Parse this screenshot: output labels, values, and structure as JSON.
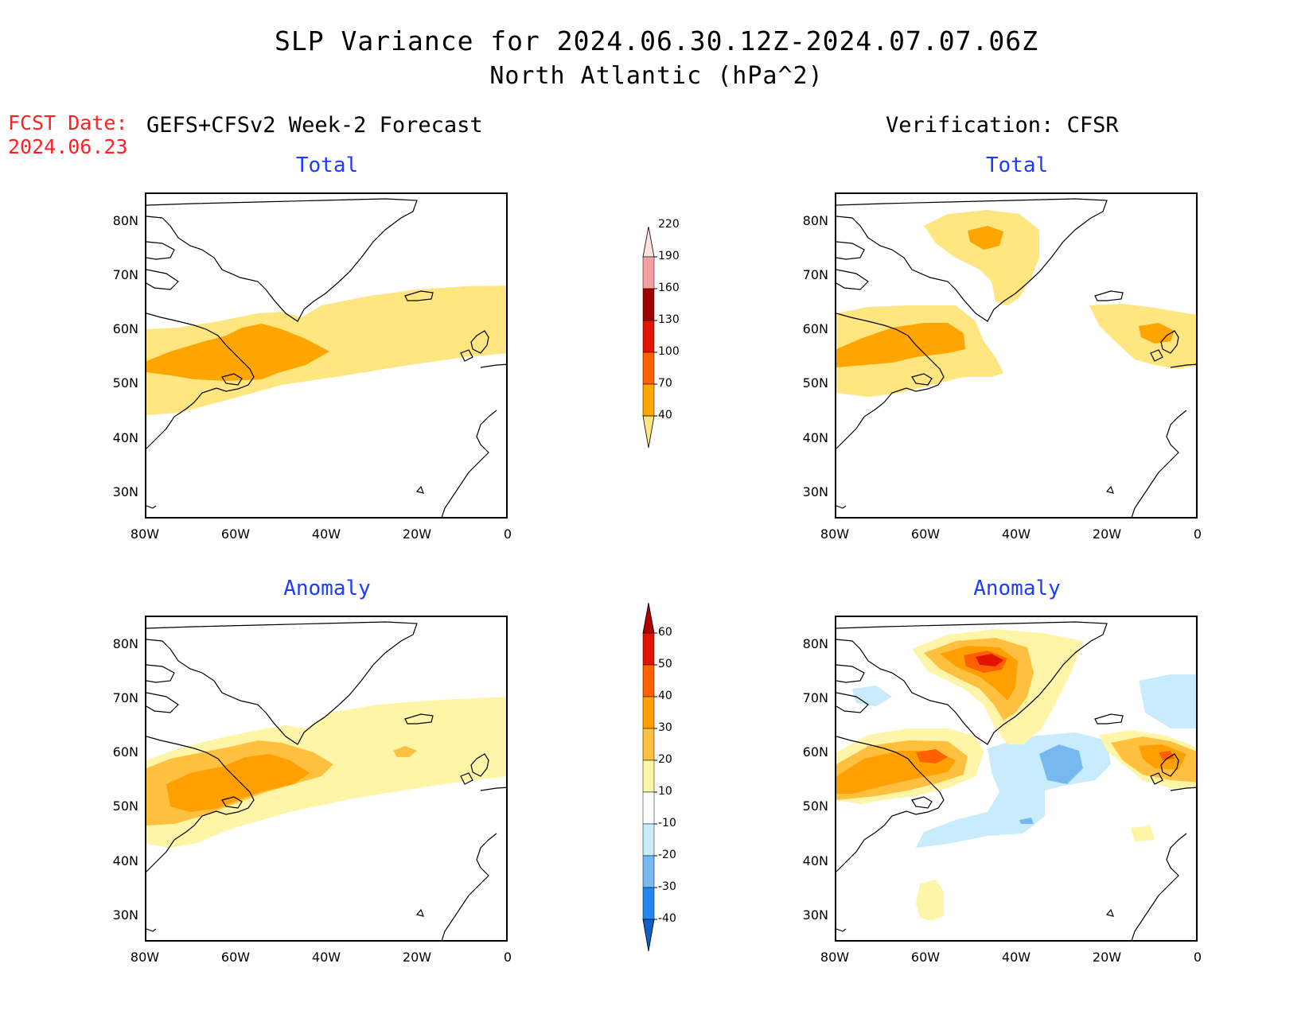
{
  "title": {
    "line1": "SLP Variance for 2024.06.30.12Z-2024.07.07.06Z",
    "line2": "North Atlantic (hPa^2)"
  },
  "fcst": {
    "label": "FCST Date:",
    "date": "2024.06.23"
  },
  "left_header": "GEFS+CFSv2 Week-2 Forecast",
  "right_header": "Verification: CFSR",
  "panel_titles": {
    "total": "Total",
    "anomaly": "Anomaly"
  },
  "lat_ticks": [
    "80N",
    "70N",
    "60N",
    "50N",
    "40N",
    "30N"
  ],
  "lon_ticks": [
    "80W",
    "60W",
    "40W",
    "20W",
    "0"
  ],
  "colorbar_total": {
    "levels": [
      "40",
      "70",
      "100",
      "130",
      "160",
      "190",
      "220"
    ],
    "colors": [
      "#ffe680",
      "#ffa500",
      "#ff6000",
      "#e01400",
      "#a00000",
      "#f4a0a0",
      "#fde0e0"
    ]
  },
  "colorbar_anomaly": {
    "levels": [
      "-40",
      "-30",
      "-20",
      "-10",
      "10",
      "20",
      "30",
      "40",
      "50",
      "60"
    ],
    "colors": [
      "#1060c8",
      "#2088f0",
      "#78b8f0",
      "#c8ecfc",
      "#ffffff",
      "#fff5a8",
      "#ffc040",
      "#ffa000",
      "#ff6000",
      "#e01400",
      "#b00000"
    ]
  },
  "colors": {
    "title_red": "#ff2020",
    "panel_title_blue": "#1e3cff"
  }
}
